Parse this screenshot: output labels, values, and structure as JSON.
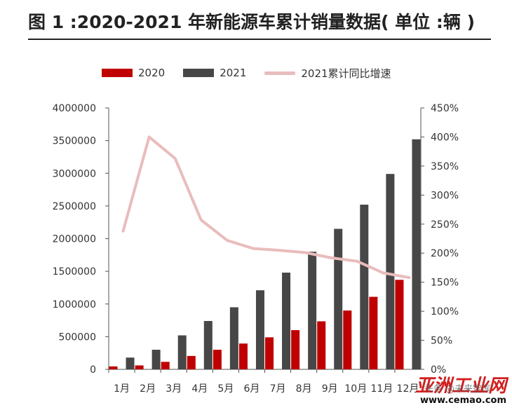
{
  "title": "图 1 :2020-2021 年新能源车累计销量数据( 单位 :辆 )",
  "chart_data": {
    "type": "bar",
    "categories": [
      "1月",
      "2月",
      "3月",
      "4月",
      "5月",
      "6月",
      "7月",
      "8月",
      "9月",
      "10月",
      "11月",
      "12月"
    ],
    "series": [
      {
        "name": "2020",
        "type": "bar",
        "axis": "left",
        "color": "#c00000",
        "values": [
          45000,
          60000,
          115000,
          205000,
          300000,
          395000,
          490000,
          600000,
          735000,
          900000,
          1110000,
          1370000
        ]
      },
      {
        "name": "2021",
        "type": "bar",
        "axis": "left",
        "color": "#474747",
        "values": [
          180000,
          300000,
          520000,
          740000,
          950000,
          1210000,
          1480000,
          1800000,
          2150000,
          2520000,
          2990000,
          3520000
        ]
      },
      {
        "name": "2021累计同比增速",
        "type": "line",
        "axis": "right",
        "color": "#e9bcbc",
        "values": [
          2.38,
          4.0,
          3.63,
          2.57,
          2.22,
          2.08,
          2.05,
          2.01,
          1.92,
          1.86,
          1.66,
          1.58
        ]
      }
    ],
    "y_left": {
      "min": 0,
      "max": 4000000,
      "step": 500000,
      "ticks": [
        "0",
        "500000",
        "1000000",
        "1500000",
        "2000000",
        "2500000",
        "3000000",
        "3500000",
        "4000000"
      ]
    },
    "y_right": {
      "min": 0,
      "max": 4.5,
      "step": 0.5,
      "ticks": [
        "0%",
        "50%",
        "100%",
        "150%",
        "200%",
        "250%",
        "300%",
        "350%",
        "400%",
        "450%"
      ]
    },
    "legend_position": "top",
    "grid": false
  },
  "watermark": {
    "logo": "亚洲工业网",
    "url": "www.cemao.com",
    "sub": "头条 @未来智库"
  }
}
